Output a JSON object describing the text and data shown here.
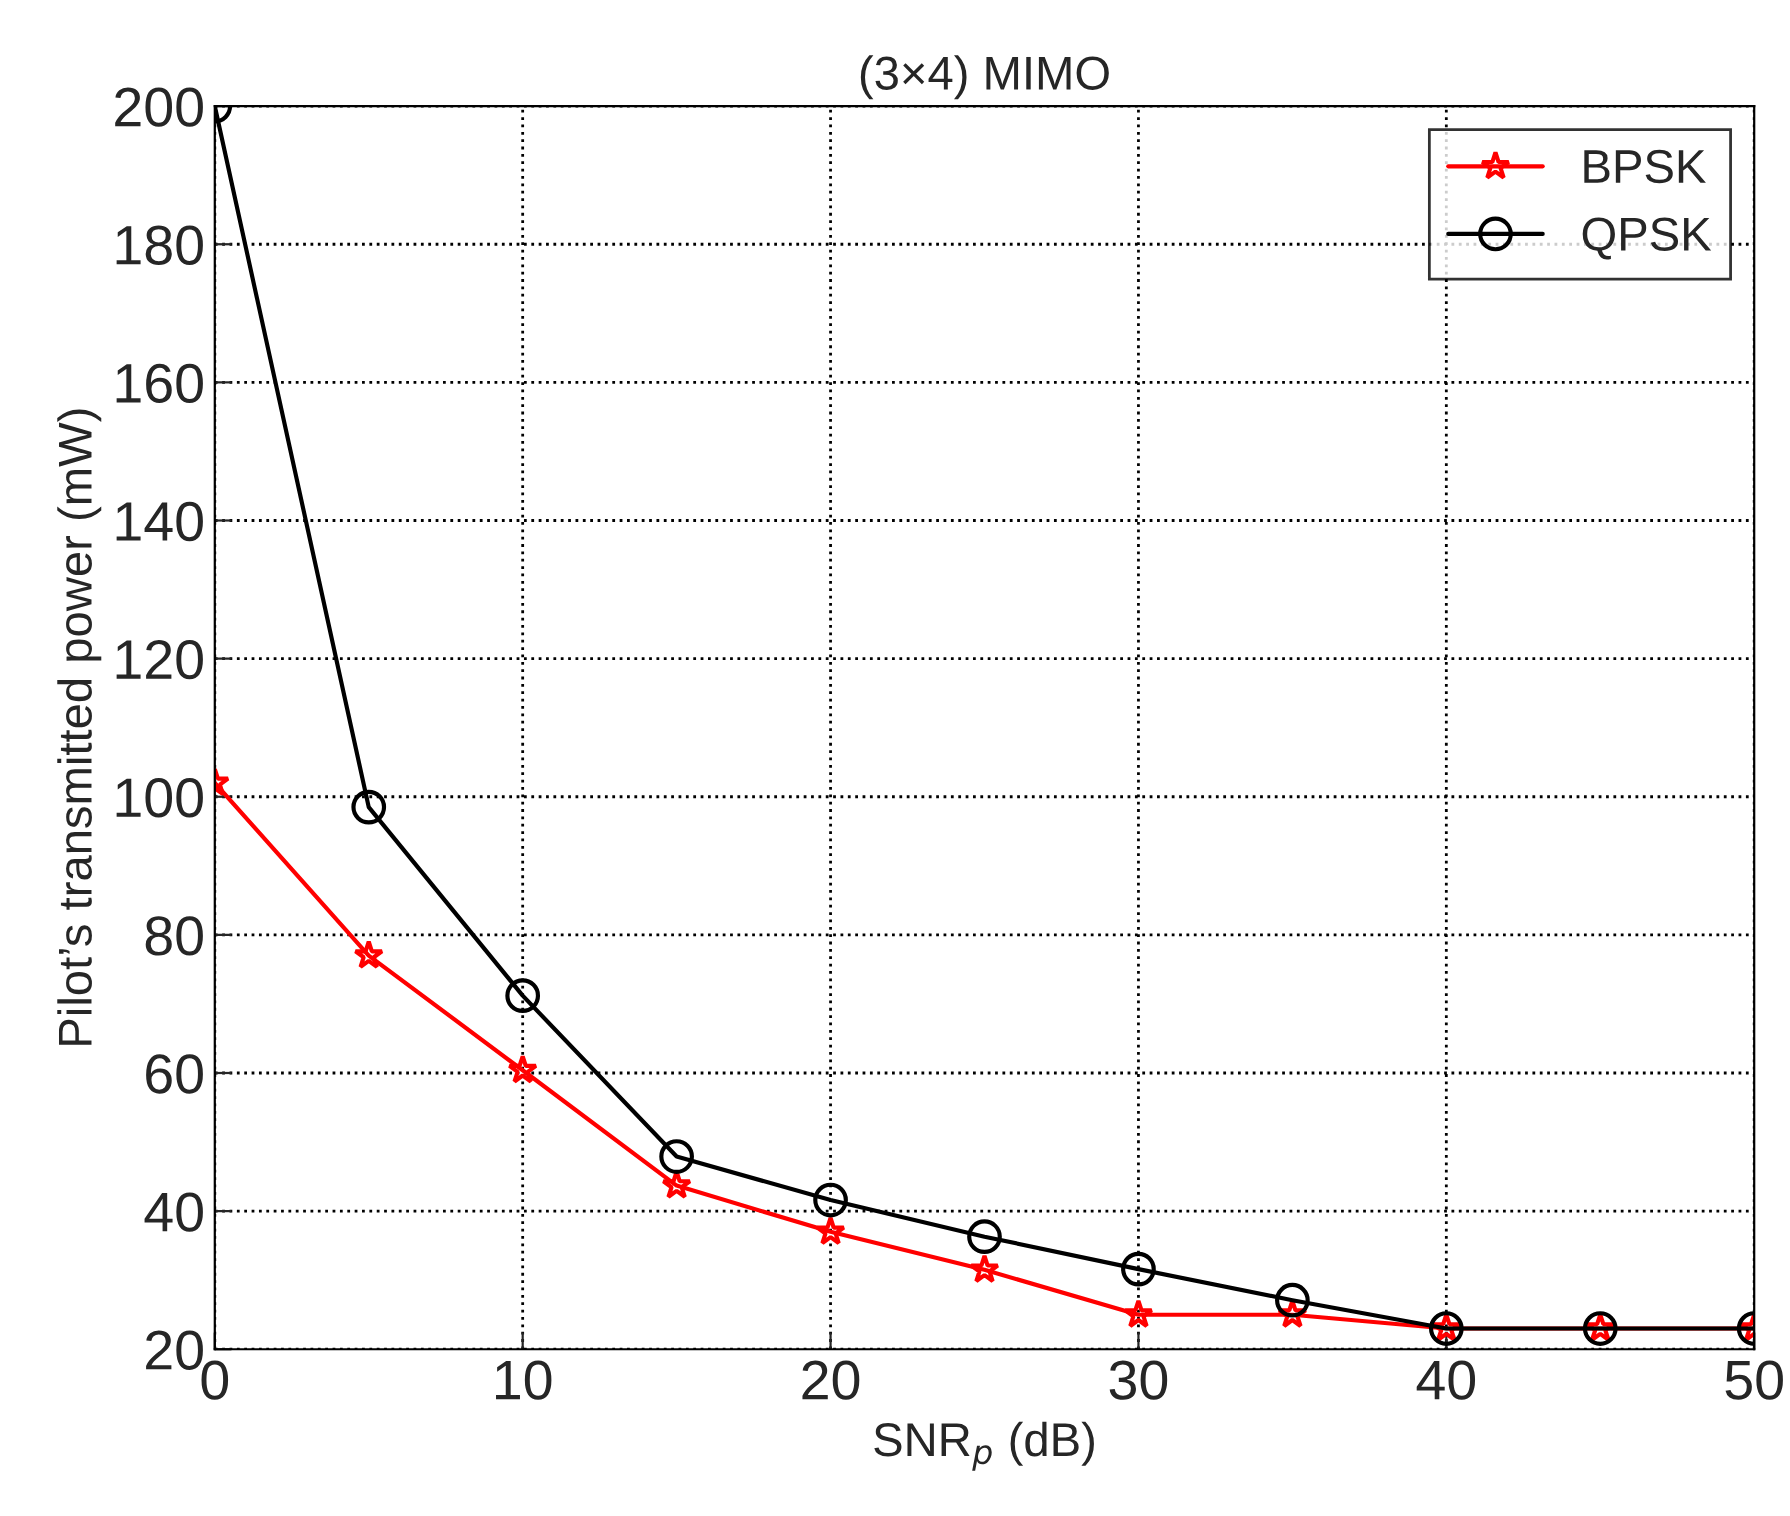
{
  "chart_data": {
    "type": "line",
    "title": "(3×4) MIMO",
    "xlabel": "SNR$_{p}$ (dB)",
    "ylabel": "Pilot’s transmitted power (mW)",
    "x": [
      0,
      5,
      10,
      15,
      20,
      25,
      30,
      35,
      40,
      45,
      50
    ],
    "series": [
      {
        "name": "BPSK",
        "color": "#ff0000",
        "marker": "star",
        "values": [
          102,
          77,
          60.4,
          43.7,
          37,
          31.5,
          25,
          25,
          23,
          23,
          23
        ]
      },
      {
        "name": "QPSK",
        "color": "#000000",
        "marker": "circle",
        "values": [
          200,
          98.5,
          71.2,
          47.9,
          41.6,
          36.3,
          31.6,
          27.1,
          23,
          23,
          23
        ]
      }
    ],
    "xlim": [
      0,
      50
    ],
    "xticks": [
      0,
      10,
      20,
      30,
      40,
      50
    ],
    "ylim": [
      20,
      200
    ],
    "yticks": [
      20,
      40,
      60,
      80,
      100,
      120,
      140,
      160,
      180,
      200
    ],
    "grid": true,
    "legend": "top right",
    "line_style": "solid"
  }
}
